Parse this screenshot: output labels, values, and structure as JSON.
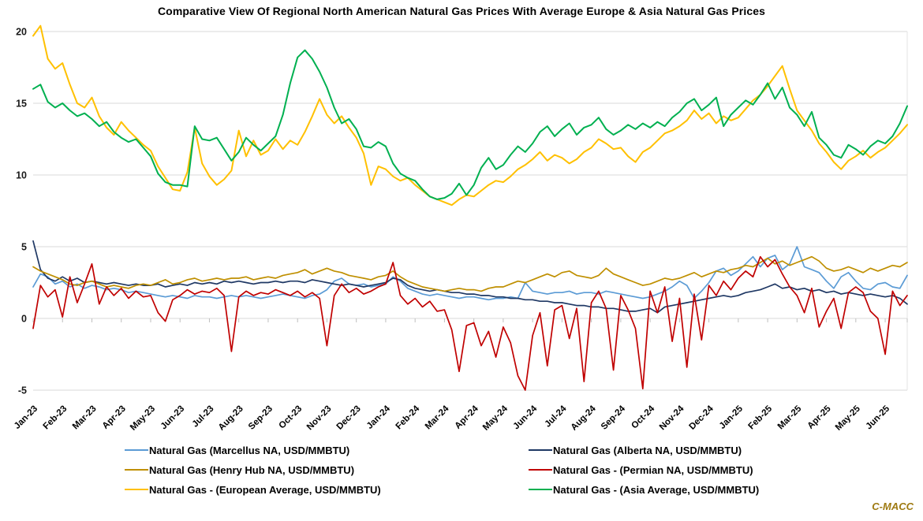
{
  "title": "Comparative View Of Regional North American Natural Gas Prices With Average Europe & Asia Natural Gas Prices",
  "watermark": "C-MACC",
  "chart_data": {
    "type": "line",
    "title": "Comparative View Of Regional North American Natural Gas Prices With Average Europe & Asia Natural Gas Prices",
    "xlabel": "",
    "ylabel": "",
    "ylim": [
      -5,
      20
    ],
    "y_ticks": [
      20,
      15,
      10,
      5,
      0,
      -5
    ],
    "grid": true,
    "legend_position": "bottom (two columns)",
    "points_per_month": 4,
    "categories": [
      "Jan-23",
      "Feb-23",
      "Mar-23",
      "Apr-23",
      "May-23",
      "Jun-23",
      "Jul-23",
      "Aug-23",
      "Sep-23",
      "Oct-23",
      "Nov-23",
      "Dec-23",
      "Jan-24",
      "Feb-24",
      "Mar-24",
      "Apr-24",
      "May-24",
      "Jun-24",
      "Jul-24",
      "Aug-24",
      "Sep-24",
      "Oct-24",
      "Nov-24",
      "Dec-24",
      "Jan-25",
      "Feb-25",
      "Mar-25",
      "Apr-25",
      "May-25",
      "Jun-25"
    ],
    "series": [
      {
        "name": "Natural Gas (Marcellus NA, USD/MMBTU)",
        "color": "#5B9BD5",
        "stroke_width": 1.7,
        "values": [
          2.2,
          3.1,
          2.9,
          2.4,
          2.6,
          2.2,
          2.4,
          2.1,
          2.3,
          2.2,
          2.0,
          2.1,
          2.0,
          1.8,
          1.9,
          1.8,
          1.7,
          1.6,
          1.5,
          1.6,
          1.5,
          1.4,
          1.6,
          1.5,
          1.5,
          1.4,
          1.5,
          1.6,
          1.5,
          1.6,
          1.5,
          1.4,
          1.5,
          1.6,
          1.7,
          1.6,
          1.5,
          1.4,
          1.6,
          1.7,
          2.0,
          2.6,
          2.8,
          2.4,
          2.3,
          2.4,
          2.2,
          2.3,
          2.4,
          2.9,
          2.6,
          2.1,
          1.9,
          1.7,
          1.6,
          1.7,
          1.6,
          1.5,
          1.4,
          1.5,
          1.5,
          1.4,
          1.3,
          1.4,
          1.4,
          1.5,
          1.4,
          2.5,
          1.9,
          1.8,
          1.7,
          1.8,
          1.8,
          1.9,
          1.7,
          1.8,
          1.8,
          1.7,
          1.9,
          1.8,
          1.7,
          1.6,
          1.5,
          1.4,
          1.5,
          1.7,
          1.9,
          2.2,
          2.6,
          2.3,
          1.4,
          1.9,
          2.5,
          3.3,
          3.5,
          3.0,
          3.3,
          3.8,
          4.3,
          3.6,
          4.2,
          4.4,
          3.4,
          3.8,
          5.0,
          3.6,
          3.4,
          3.2,
          2.6,
          2.1,
          2.9,
          3.2,
          2.6,
          2.1,
          2.0,
          2.4,
          2.5,
          2.2,
          2.1,
          3.0
        ]
      },
      {
        "name": "Natural Gas (Alberta NA, USD/MMBTU)",
        "color": "#1F3864",
        "stroke_width": 1.7,
        "values": [
          5.4,
          3.4,
          2.8,
          2.6,
          2.9,
          2.6,
          2.8,
          2.5,
          2.6,
          2.5,
          2.4,
          2.5,
          2.4,
          2.3,
          2.4,
          2.3,
          2.3,
          2.4,
          2.2,
          2.3,
          2.4,
          2.3,
          2.5,
          2.4,
          2.5,
          2.4,
          2.6,
          2.5,
          2.6,
          2.5,
          2.4,
          2.5,
          2.5,
          2.6,
          2.5,
          2.6,
          2.6,
          2.5,
          2.7,
          2.6,
          2.5,
          2.4,
          2.3,
          2.4,
          2.3,
          2.2,
          2.3,
          2.4,
          2.5,
          2.8,
          2.7,
          2.3,
          2.1,
          2.0,
          1.9,
          2.0,
          1.9,
          1.8,
          1.8,
          1.7,
          1.7,
          1.6,
          1.6,
          1.5,
          1.5,
          1.4,
          1.4,
          1.3,
          1.3,
          1.2,
          1.2,
          1.1,
          1.1,
          1.0,
          0.9,
          0.9,
          0.8,
          0.8,
          0.7,
          0.7,
          0.6,
          0.5,
          0.5,
          0.6,
          0.7,
          0.4,
          0.8,
          0.9,
          1.0,
          1.1,
          1.2,
          1.3,
          1.4,
          1.5,
          1.6,
          1.5,
          1.6,
          1.8,
          1.9,
          2.0,
          2.2,
          2.4,
          2.1,
          2.2,
          2.0,
          2.1,
          1.9,
          2.0,
          1.8,
          1.9,
          1.7,
          1.8,
          1.7,
          1.6,
          1.7,
          1.6,
          1.5,
          1.6,
          1.4,
          1.0
        ]
      },
      {
        "name": "Natural Gas (Henry Hub NA, USD/MMBTU)",
        "color": "#BF8F00",
        "stroke_width": 1.7,
        "values": [
          3.6,
          3.3,
          3.1,
          2.9,
          2.7,
          2.4,
          2.3,
          2.5,
          2.6,
          2.4,
          2.2,
          2.3,
          2.2,
          2.1,
          2.3,
          2.4,
          2.3,
          2.5,
          2.7,
          2.4,
          2.5,
          2.7,
          2.8,
          2.6,
          2.7,
          2.8,
          2.7,
          2.8,
          2.8,
          2.9,
          2.7,
          2.8,
          2.9,
          2.8,
          3.0,
          3.1,
          3.2,
          3.4,
          3.1,
          3.3,
          3.5,
          3.3,
          3.2,
          3.0,
          2.9,
          2.8,
          2.7,
          2.9,
          3.0,
          3.3,
          2.9,
          2.6,
          2.4,
          2.2,
          2.1,
          2.0,
          1.9,
          2.0,
          2.1,
          2.0,
          2.0,
          1.9,
          2.1,
          2.2,
          2.2,
          2.4,
          2.6,
          2.5,
          2.7,
          2.9,
          3.1,
          2.9,
          3.2,
          3.3,
          3.0,
          2.9,
          2.8,
          3.0,
          3.5,
          3.1,
          2.9,
          2.7,
          2.5,
          2.3,
          2.4,
          2.6,
          2.8,
          2.7,
          2.8,
          3.0,
          3.2,
          2.9,
          3.1,
          3.3,
          3.2,
          3.4,
          3.5,
          3.7,
          3.6,
          3.9,
          4.2,
          3.8,
          4.0,
          3.7,
          3.9,
          4.1,
          4.3,
          4.0,
          3.5,
          3.3,
          3.4,
          3.6,
          3.4,
          3.2,
          3.5,
          3.3,
          3.5,
          3.7,
          3.6,
          3.9
        ]
      },
      {
        "name": "Natural Gas - (Permian NA, USD/MMBTU)",
        "color": "#C00000",
        "stroke_width": 1.7,
        "values": [
          -0.7,
          2.3,
          1.5,
          2.0,
          0.1,
          2.9,
          1.1,
          2.4,
          3.8,
          1.0,
          2.2,
          1.6,
          2.1,
          1.4,
          1.9,
          1.5,
          1.6,
          0.4,
          -0.2,
          1.3,
          1.6,
          2.0,
          1.7,
          1.9,
          1.8,
          2.1,
          1.6,
          -2.3,
          1.5,
          1.9,
          1.6,
          1.8,
          1.7,
          2.0,
          1.8,
          1.6,
          1.9,
          1.5,
          1.8,
          1.4,
          -1.9,
          1.6,
          2.4,
          1.8,
          2.1,
          1.7,
          1.9,
          2.2,
          2.4,
          3.9,
          1.6,
          1.0,
          1.4,
          0.8,
          1.2,
          0.5,
          0.6,
          -0.8,
          -3.7,
          -0.5,
          -0.3,
          -1.9,
          -0.9,
          -2.7,
          -0.6,
          -1.7,
          -4.0,
          -5.0,
          -1.2,
          0.4,
          -3.3,
          0.6,
          0.9,
          -1.4,
          0.7,
          -4.4,
          1.1,
          1.9,
          0.7,
          -3.6,
          1.6,
          0.6,
          -0.7,
          -4.9,
          1.9,
          0.4,
          2.2,
          -1.6,
          1.4,
          -3.4,
          1.7,
          -1.5,
          2.3,
          1.6,
          2.6,
          2.0,
          2.8,
          3.3,
          2.9,
          4.3,
          3.6,
          4.1,
          3.1,
          2.2,
          1.6,
          0.4,
          2.1,
          -0.6,
          0.5,
          1.4,
          -0.7,
          1.8,
          2.2,
          1.8,
          0.5,
          0.0,
          -2.5,
          1.9,
          0.9,
          1.6
        ]
      },
      {
        "name": "Natural Gas - (European Average, USD/MMBTU)",
        "color": "#FFC000",
        "stroke_width": 2.0,
        "values": [
          19.7,
          20.4,
          18.1,
          17.4,
          17.8,
          16.3,
          15.0,
          14.7,
          15.4,
          14.1,
          13.3,
          12.8,
          13.7,
          13.1,
          12.6,
          12.1,
          11.7,
          10.6,
          9.8,
          9.0,
          8.9,
          10.2,
          13.3,
          10.8,
          9.9,
          9.3,
          9.7,
          10.3,
          13.1,
          11.3,
          12.4,
          11.4,
          11.7,
          12.5,
          11.8,
          12.4,
          12.1,
          13.0,
          14.1,
          15.3,
          14.2,
          13.6,
          14.1,
          13.3,
          12.6,
          11.5,
          9.3,
          10.6,
          10.4,
          9.9,
          9.6,
          9.8,
          9.3,
          8.9,
          8.5,
          8.3,
          8.1,
          7.9,
          8.3,
          8.6,
          8.5,
          8.9,
          9.3,
          9.6,
          9.5,
          9.9,
          10.4,
          10.7,
          11.1,
          11.6,
          11.0,
          11.4,
          11.2,
          10.8,
          11.1,
          11.6,
          11.9,
          12.5,
          12.2,
          11.8,
          11.9,
          11.3,
          10.9,
          11.6,
          11.9,
          12.4,
          12.9,
          13.1,
          13.4,
          13.8,
          14.5,
          13.9,
          14.3,
          13.6,
          14.1,
          13.8,
          14.0,
          14.6,
          15.2,
          15.6,
          16.2,
          16.9,
          17.6,
          16.0,
          14.5,
          13.8,
          13.1,
          12.2,
          11.6,
          10.9,
          10.4,
          11.0,
          11.3,
          11.7,
          11.2,
          11.6,
          11.9,
          12.4,
          12.9,
          13.5
        ]
      },
      {
        "name": "Natural Gas - (Asia Average, USD/MMBTU)",
        "color": "#00B050",
        "stroke_width": 2.0,
        "values": [
          16.0,
          16.3,
          15.1,
          14.7,
          15.0,
          14.5,
          14.1,
          14.3,
          13.9,
          13.4,
          13.7,
          13.0,
          12.6,
          12.3,
          12.5,
          11.9,
          11.3,
          10.1,
          9.5,
          9.3,
          9.3,
          9.2,
          13.4,
          12.5,
          12.4,
          12.6,
          11.8,
          11.0,
          11.6,
          12.6,
          12.1,
          11.7,
          12.2,
          12.7,
          14.2,
          16.4,
          18.2,
          18.7,
          18.1,
          17.2,
          16.1,
          14.7,
          13.6,
          13.9,
          13.2,
          12.0,
          11.9,
          12.3,
          12.0,
          10.8,
          10.1,
          9.8,
          9.6,
          9.0,
          8.5,
          8.3,
          8.4,
          8.7,
          9.4,
          8.6,
          9.3,
          10.5,
          11.2,
          10.4,
          10.7,
          11.4,
          12.0,
          11.6,
          12.2,
          13.0,
          13.4,
          12.7,
          13.2,
          13.6,
          12.8,
          13.3,
          13.5,
          14.0,
          13.2,
          12.8,
          13.1,
          13.5,
          13.2,
          13.6,
          13.3,
          13.7,
          13.4,
          14.0,
          14.4,
          15.0,
          15.3,
          14.5,
          14.9,
          15.4,
          13.4,
          14.2,
          14.7,
          15.2,
          14.9,
          15.6,
          16.4,
          15.3,
          16.1,
          14.7,
          14.2,
          13.4,
          14.4,
          12.6,
          12.1,
          11.4,
          11.2,
          12.1,
          11.8,
          11.4,
          12.0,
          12.4,
          12.2,
          12.7,
          13.6,
          14.8
        ]
      }
    ]
  }
}
